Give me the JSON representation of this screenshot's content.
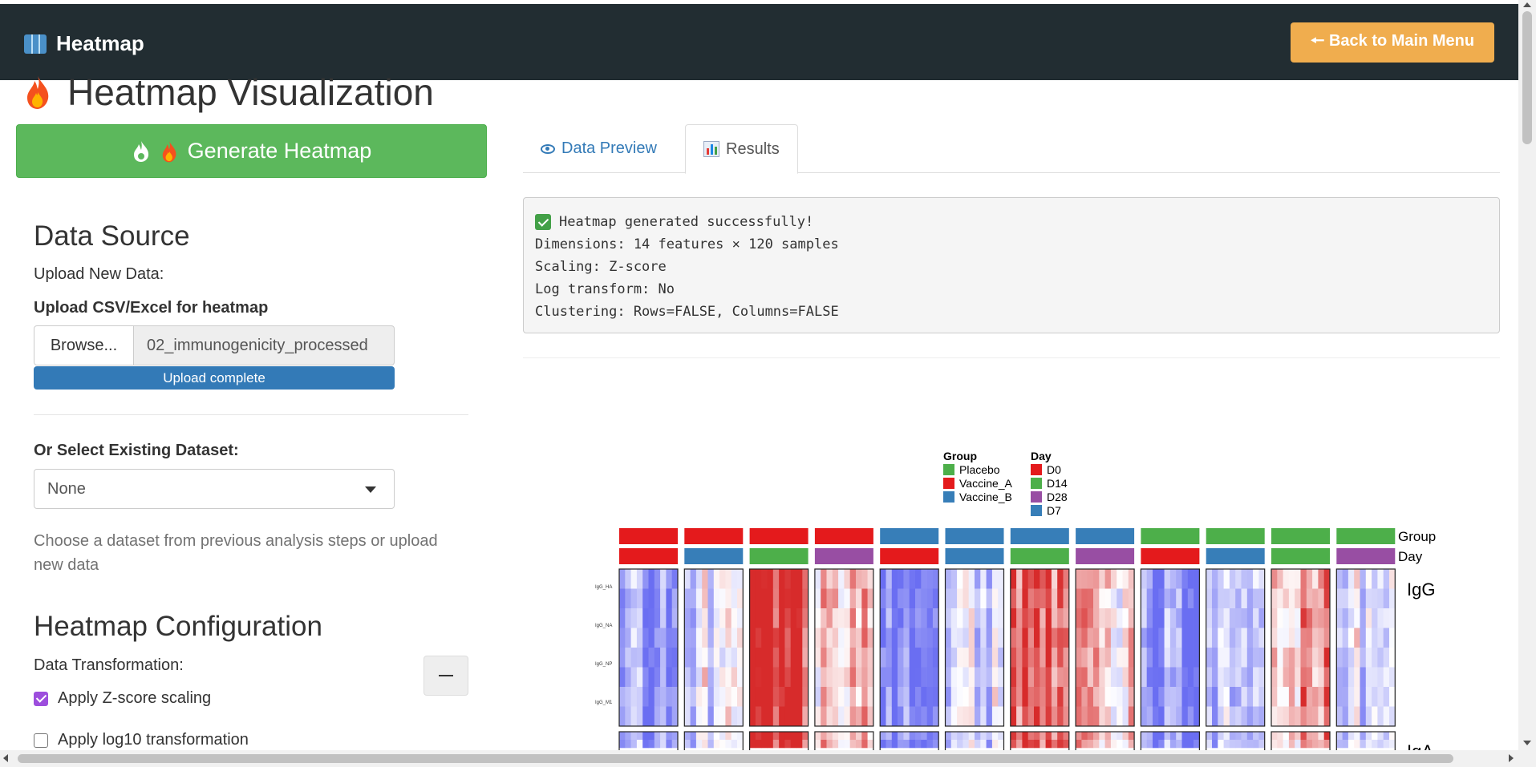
{
  "header": {
    "app_title": "Heatmap",
    "back_button": "🠔 Back to Main Menu"
  },
  "page": {
    "title": "Heatmap Visualization",
    "generate_button": "Generate Heatmap"
  },
  "data_source": {
    "heading": "Data Source",
    "upload_new_label": "Upload New Data:",
    "upload_field_label": "Upload CSV/Excel for heatmap",
    "browse_label": "Browse...",
    "file_name": "02_immunogenicity_processed",
    "progress_text": "Upload complete",
    "progress": 1.0,
    "existing_label": "Or Select Existing Dataset:",
    "existing_value": "None",
    "help_text": "Choose a dataset from previous analysis steps or upload new data"
  },
  "config": {
    "heading": "Heatmap Configuration",
    "transform_label": "Data Transformation:",
    "zscore_label": "Apply Z-score scaling",
    "zscore_checked": true,
    "log10_label": "Apply log10 transformation",
    "log10_checked": false
  },
  "tabs": [
    {
      "label": "Data Preview",
      "icon": "eye-icon",
      "active": false
    },
    {
      "label": "Results",
      "icon": "bar-chart-icon",
      "active": true
    }
  ],
  "output": {
    "lines": [
      "Heatmap generated successfully!",
      "Dimensions: 14 features × 120 samples",
      "Scaling: Z-score",
      "Log transform: No",
      "Clustering: Rows=FALSE, Columns=FALSE"
    ]
  },
  "heatmap": {
    "legend_group_title": "Group",
    "legend_day_title": "Day",
    "groups": [
      {
        "name": "Placebo",
        "color": "#4daf4a"
      },
      {
        "name": "Vaccine_A",
        "color": "#e41a1c"
      },
      {
        "name": "Vaccine_B",
        "color": "#377eb8"
      }
    ],
    "days": [
      {
        "name": "D0",
        "color": "#e41a1c"
      },
      {
        "name": "D14",
        "color": "#4daf4a"
      },
      {
        "name": "D28",
        "color": "#984ea3"
      },
      {
        "name": "D7",
        "color": "#377eb8"
      }
    ],
    "annotation_row_labels": [
      "Group",
      "Day"
    ],
    "column_blocks": [
      {
        "group": "Vaccine_A",
        "day": "D0",
        "level": -0.7
      },
      {
        "group": "Vaccine_A",
        "day": "D7",
        "level": -0.15
      },
      {
        "group": "Vaccine_A",
        "day": "D14",
        "level": 0.9
      },
      {
        "group": "Vaccine_A",
        "day": "D28",
        "level": 0.3
      },
      {
        "group": "Vaccine_B",
        "day": "D0",
        "level": -0.75
      },
      {
        "group": "Vaccine_B",
        "day": "D7",
        "level": -0.2
      },
      {
        "group": "Vaccine_B",
        "day": "D14",
        "level": 0.75
      },
      {
        "group": "Vaccine_B",
        "day": "D28",
        "level": 0.25
      },
      {
        "group": "Placebo",
        "day": "D0",
        "level": -0.75
      },
      {
        "group": "Placebo",
        "day": "D7",
        "level": -0.5
      },
      {
        "group": "Placebo",
        "day": "D14",
        "level": 0.5
      },
      {
        "group": "Placebo",
        "day": "D28",
        "level": -0.3
      }
    ],
    "row_groups": [
      "IgG",
      "IgA"
    ],
    "igg_row_labels": [
      "IgG_HA",
      "IgG_NA",
      "IgG_NP",
      "IgG_M1"
    ]
  },
  "colors": {
    "header_bg": "#222d32",
    "accent_green": "#5cb85c",
    "accent_orange": "#f0ad4e",
    "accent_blue": "#337ab7",
    "heat_low": "#6a6ef2",
    "heat_mid": "#ffffff",
    "heat_high": "#d72b2b"
  }
}
